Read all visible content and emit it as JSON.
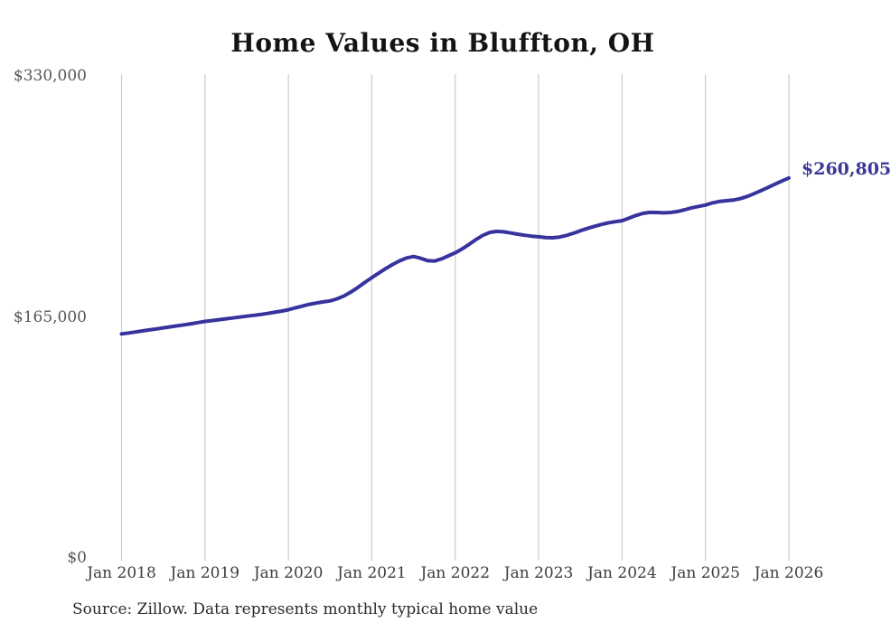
{
  "title": "Home Values in Bluffton, OH",
  "end_label": "$260,805",
  "source": "Source: Zillow. Data represents monthly typical home value",
  "colors": {
    "line": "#37339e",
    "end_label": "#3b3896",
    "grid": "#cccccc",
    "y_tick_text": "#565656",
    "x_tick_text": "#3d3d3d"
  },
  "y_axis": {
    "ticks": [
      {
        "label": "$0",
        "value": 0
      },
      {
        "label": "$165,000",
        "value": 165000
      },
      {
        "label": "$330,000",
        "value": 330000
      }
    ]
  },
  "x_axis": {
    "ticks": [
      "Jan 2018",
      "Jan 2019",
      "Jan 2020",
      "Jan 2021",
      "Jan 2022",
      "Jan 2023",
      "Jan 2024",
      "Jan 2025",
      "Jan 2026"
    ]
  },
  "chart_data": {
    "type": "line",
    "title": "Home Values in Bluffton, OH",
    "xlabel": "",
    "ylabel": "",
    "ylim": [
      0,
      330000
    ],
    "grid": "vertical-only",
    "legend": "none",
    "annotation": "$260,805",
    "x": [
      "2018-01",
      "2018-02",
      "2018-03",
      "2018-04",
      "2018-05",
      "2018-06",
      "2018-07",
      "2018-08",
      "2018-09",
      "2018-10",
      "2018-11",
      "2018-12",
      "2019-01",
      "2019-02",
      "2019-03",
      "2019-04",
      "2019-05",
      "2019-06",
      "2019-07",
      "2019-08",
      "2019-09",
      "2019-10",
      "2019-11",
      "2019-12",
      "2020-01",
      "2020-02",
      "2020-03",
      "2020-04",
      "2020-05",
      "2020-06",
      "2020-07",
      "2020-08",
      "2020-09",
      "2020-10",
      "2020-11",
      "2020-12",
      "2021-01",
      "2021-02",
      "2021-03",
      "2021-04",
      "2021-05",
      "2021-06",
      "2021-07",
      "2021-08",
      "2021-09",
      "2021-10",
      "2021-11",
      "2021-12",
      "2022-01",
      "2022-02",
      "2022-03",
      "2022-04",
      "2022-05",
      "2022-06",
      "2022-07",
      "2022-08",
      "2022-09",
      "2022-10",
      "2022-11",
      "2022-12",
      "2023-01",
      "2023-02",
      "2023-03",
      "2023-04",
      "2023-05",
      "2023-06",
      "2023-07",
      "2023-08",
      "2023-09",
      "2023-10",
      "2023-11",
      "2023-12",
      "2024-01",
      "2024-02",
      "2024-03",
      "2024-04",
      "2024-05",
      "2024-06",
      "2024-07",
      "2024-08",
      "2024-09",
      "2024-10",
      "2024-11",
      "2024-12",
      "2025-01",
      "2025-02",
      "2025-03",
      "2025-04",
      "2025-05",
      "2025-06",
      "2025-07",
      "2025-08",
      "2025-09",
      "2025-10",
      "2025-11",
      "2025-12",
      "2026-01"
    ],
    "values": [
      154000,
      154600,
      155300,
      156000,
      156700,
      157400,
      158100,
      158800,
      159500,
      160200,
      160900,
      161700,
      162500,
      163100,
      163700,
      164300,
      164900,
      165500,
      166100,
      166700,
      167300,
      168000,
      168800,
      169600,
      170500,
      171800,
      173000,
      174200,
      175100,
      175900,
      176600,
      178000,
      180000,
      182700,
      185800,
      189200,
      192500,
      195600,
      198700,
      201500,
      204000,
      206000,
      207000,
      205800,
      204200,
      203800,
      205300,
      207400,
      209500,
      212200,
      215300,
      218600,
      221500,
      223500,
      224200,
      223900,
      223100,
      222300,
      221500,
      220900,
      220500,
      220000,
      219800,
      220300,
      221400,
      222900,
      224600,
      226200,
      227600,
      228900,
      230000,
      230800,
      231500,
      233200,
      235100,
      236500,
      237200,
      237100,
      236900,
      237100,
      237800,
      239000,
      240300,
      241300,
      242200,
      243700,
      244700,
      245200,
      245600,
      246600,
      248100,
      250000,
      252100,
      254300,
      256500,
      258700,
      260805
    ]
  }
}
